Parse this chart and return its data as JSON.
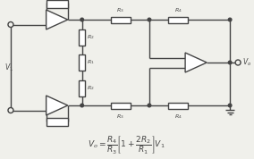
{
  "bg_color": "#f0f0eb",
  "line_color": "#444444",
  "lw": 1.0,
  "formula": "$V_o = \\dfrac{R_4}{R_3}\\left[1 + \\dfrac{2R_2}{R_1}\\right]V_1$",
  "formula_fontsize": 6.5
}
